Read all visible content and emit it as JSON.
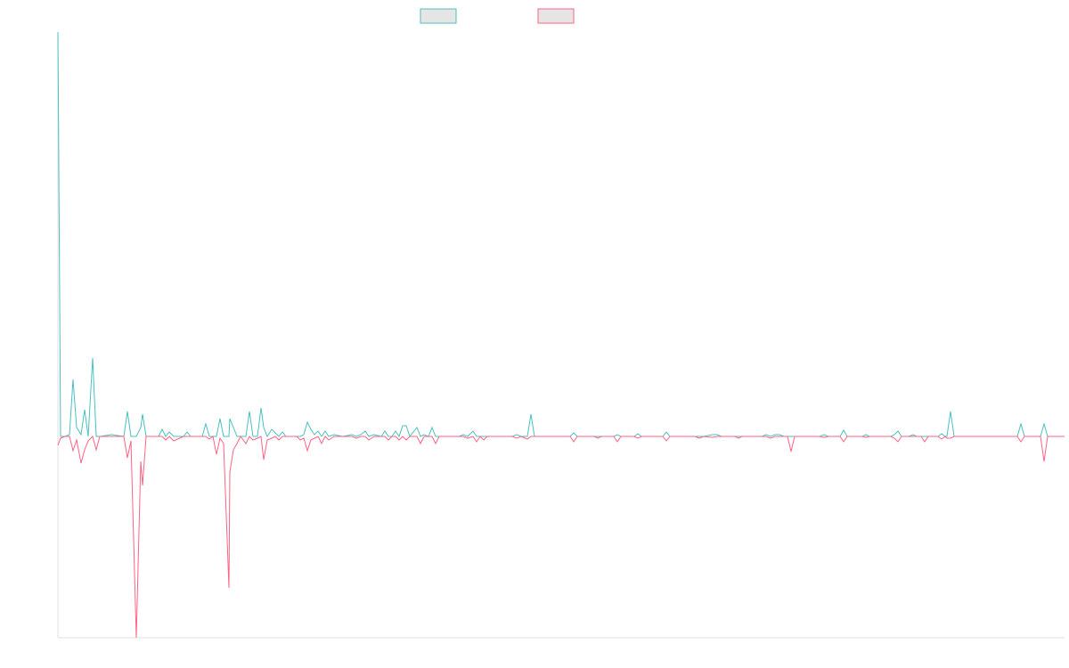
{
  "chart_data": {
    "type": "line",
    "x": [
      0,
      3,
      8,
      13,
      17,
      21,
      26,
      30,
      34,
      39,
      43,
      47,
      60,
      74,
      78,
      82,
      88,
      93,
      95,
      99,
      113,
      117,
      121,
      125,
      130,
      141,
      145,
      149,
      162,
      166,
      170,
      174,
      178,
      182,
      186,
      192,
      193,
      197,
      201,
      205,
      211,
      215,
      219,
      224,
      228,
      231,
      235,
      240,
      244,
      248,
      252,
      256,
      268,
      272,
      276,
      280,
      284,
      288,
      292,
      296,
      300,
      304,
      310,
      320,
      330,
      335,
      340,
      345,
      349,
      355,
      363,
      367,
      371,
      375,
      379,
      383,
      387,
      391,
      395,
      403,
      407,
      411,
      416,
      420,
      424,
      428,
      450,
      455,
      460,
      466,
      470,
      474,
      478,
      482,
      510,
      515,
      520,
      527,
      531,
      535,
      575,
      579,
      583,
      602,
      606,
      610,
      624,
      628,
      632,
      647,
      651,
      655,
      679,
      683,
      687,
      715,
      720,
      725,
      735,
      740,
      745,
      760,
      764,
      768,
      790,
      795,
      800,
      805,
      810,
      815,
      819,
      823,
      827,
      855,
      860,
      865,
      878,
      882,
      886,
      903,
      907,
      911,
      935,
      939,
      943,
      947,
      955,
      960,
      964,
      969,
      973,
      977,
      988,
      992,
      996,
      998,
      1002,
      1006,
      1077,
      1081,
      1085,
      1103,
      1107,
      1111,
      1130
    ],
    "series": [
      {
        "color": "#4bc0c0",
        "values": [
          454,
          0,
          0,
          2,
          64,
          10,
          2,
          30,
          0,
          88,
          0,
          0,
          2,
          0,
          28,
          0,
          0,
          10,
          25,
          0,
          0,
          8,
          0,
          5,
          0,
          0,
          5,
          0,
          0,
          14,
          0,
          0,
          0,
          20,
          0,
          0,
          20,
          10,
          0,
          0,
          0,
          28,
          0,
          0,
          32,
          10,
          0,
          8,
          4,
          0,
          5,
          0,
          0,
          0,
          2,
          16,
          8,
          2,
          6,
          0,
          6,
          0,
          2,
          0,
          2,
          0,
          2,
          6,
          0,
          2,
          0,
          6,
          0,
          0,
          6,
          0,
          12,
          12,
          0,
          10,
          0,
          2,
          0,
          10,
          0,
          0,
          0,
          2,
          0,
          6,
          0,
          0,
          0,
          0,
          0,
          2,
          0,
          0,
          25,
          0,
          0,
          4,
          0,
          0,
          0,
          0,
          0,
          2,
          0,
          0,
          3,
          0,
          0,
          5,
          0,
          0,
          0,
          0,
          2,
          2,
          0,
          0,
          0,
          0,
          0,
          2,
          0,
          2,
          2,
          0,
          0,
          0,
          0,
          0,
          2,
          0,
          0,
          7,
          0,
          0,
          2,
          0,
          0,
          2,
          6,
          0,
          0,
          2,
          0,
          0,
          0,
          0,
          0,
          3,
          0,
          0,
          28,
          0,
          0,
          14,
          0,
          0,
          14,
          0,
          0
        ]
      },
      {
        "color": "#ff6384",
        "values": [
          -10,
          -2,
          0,
          0,
          -16,
          -4,
          -30,
          -15,
          -5,
          0,
          -15,
          0,
          0,
          0,
          -24,
          -5,
          -226,
          -28,
          -55,
          0,
          0,
          0,
          -4,
          0,
          -5,
          0,
          0,
          0,
          0,
          0,
          -3,
          0,
          -20,
          -2,
          -8,
          -170,
          -40,
          -15,
          -8,
          0,
          -8,
          0,
          -4,
          -2,
          0,
          -26,
          -4,
          -2,
          0,
          -4,
          0,
          0,
          0,
          -4,
          -2,
          -16,
          -4,
          -2,
          0,
          -8,
          0,
          -4,
          0,
          0,
          0,
          -2,
          0,
          0,
          -4,
          0,
          0,
          0,
          -4,
          0,
          0,
          -4,
          0,
          -4,
          0,
          0,
          -8,
          0,
          0,
          0,
          -8,
          0,
          0,
          0,
          -2,
          0,
          -6,
          0,
          -4,
          0,
          0,
          -2,
          0,
          -3,
          0,
          0,
          0,
          -6,
          0,
          0,
          -2,
          0,
          0,
          -6,
          0,
          0,
          -2,
          0,
          0,
          -5,
          0,
          0,
          -2,
          0,
          -1,
          0,
          0,
          0,
          -2,
          0,
          0,
          0,
          -2,
          0,
          0,
          0,
          0,
          -17,
          0,
          0,
          -1,
          0,
          0,
          -6,
          0,
          0,
          -1,
          0,
          0,
          -2,
          -6,
          0,
          0,
          0,
          0,
          0,
          -6,
          0,
          0,
          -3,
          0,
          -2,
          -2,
          0,
          0,
          -6,
          0,
          0,
          -28,
          0,
          0
        ]
      }
    ],
    "xlim": [
      0,
      1130
    ],
    "ylim": [
      -226,
      454
    ]
  }
}
